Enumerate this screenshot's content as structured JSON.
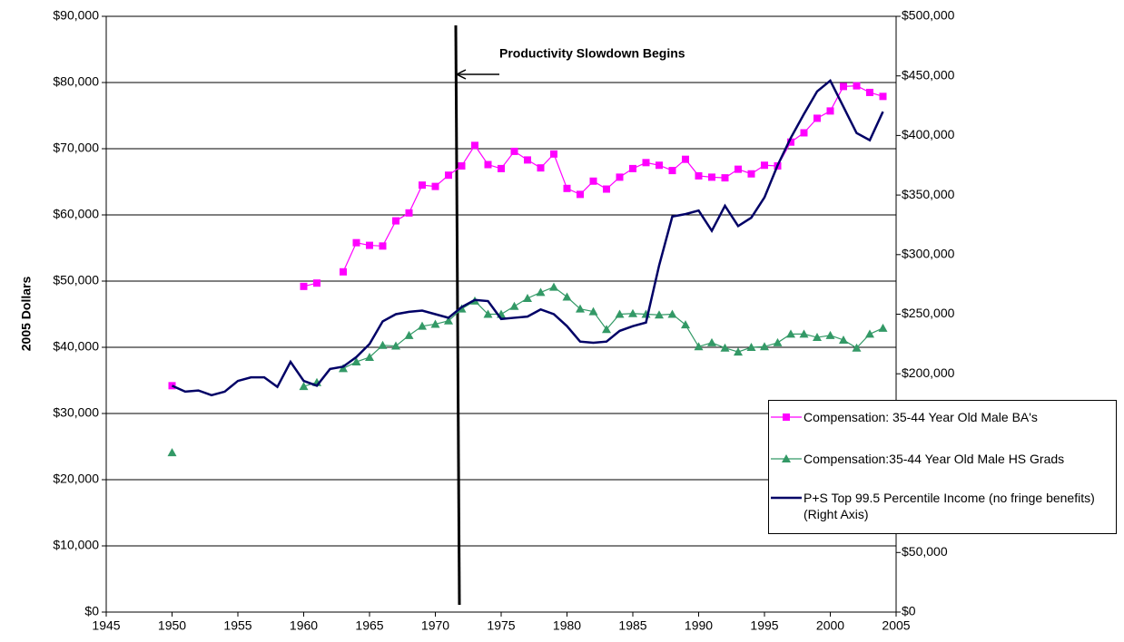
{
  "chart_data": {
    "type": "line",
    "y_label": "2005 Dollars",
    "annotation": "Productivity Slowdown Begins",
    "x": [
      1950,
      1951,
      1952,
      1953,
      1954,
      1955,
      1956,
      1957,
      1958,
      1959,
      1960,
      1961,
      1962,
      1963,
      1964,
      1965,
      1966,
      1967,
      1968,
      1969,
      1970,
      1971,
      1972,
      1973,
      1974,
      1975,
      1976,
      1977,
      1978,
      1979,
      1980,
      1981,
      1982,
      1983,
      1984,
      1985,
      1986,
      1987,
      1988,
      1989,
      1990,
      1991,
      1992,
      1993,
      1994,
      1995,
      1996,
      1997,
      1998,
      1999,
      2000,
      2001,
      2002,
      2003,
      2004
    ],
    "xlim": [
      1945,
      2005
    ],
    "xticks": [
      1945,
      1950,
      1955,
      1960,
      1965,
      1970,
      1975,
      1980,
      1985,
      1990,
      1995,
      2000,
      2005
    ],
    "ylim": [
      0,
      90000
    ],
    "yticks": [
      {
        "value": 0,
        "label": "$0"
      },
      {
        "value": 10000,
        "label": "$10,000"
      },
      {
        "value": 20000,
        "label": "$20,000"
      },
      {
        "value": 30000,
        "label": "$30,000"
      },
      {
        "value": 40000,
        "label": "$40,000"
      },
      {
        "value": 50000,
        "label": "$50,000"
      },
      {
        "value": 60000,
        "label": "$60,000"
      },
      {
        "value": 70000,
        "label": "$70,000"
      },
      {
        "value": 80000,
        "label": "$80,000"
      },
      {
        "value": 90000,
        "label": "$90,000"
      }
    ],
    "y2lim": [
      0,
      500000
    ],
    "y2ticks": [
      {
        "value": 0,
        "label": "$0"
      },
      {
        "value": 50000,
        "label": "$50,000"
      },
      {
        "value": 100000,
        "label": "$100,000"
      },
      {
        "value": 150000,
        "label": "$150,000"
      },
      {
        "value": 200000,
        "label": "$200,000"
      },
      {
        "value": 250000,
        "label": "$250,000"
      },
      {
        "value": 300000,
        "label": "$300,000"
      },
      {
        "value": 350000,
        "label": "$350,000"
      },
      {
        "value": 400000,
        "label": "$400,000"
      },
      {
        "value": 450000,
        "label": "$450,000"
      },
      {
        "value": 500000,
        "label": "$500,000"
      }
    ],
    "grid": true,
    "series": [
      {
        "name": "Compensation: 35-44 Year Old Male BA's",
        "color": "#ff00ff",
        "marker": "square",
        "values": [
          34200,
          null,
          null,
          null,
          null,
          null,
          null,
          null,
          null,
          null,
          49200,
          49700,
          null,
          51400,
          55800,
          55400,
          55300,
          59100,
          60300,
          64500,
          64300,
          66000,
          67400,
          70500,
          67600,
          67000,
          69600,
          68300,
          67100,
          69200,
          64000,
          63100,
          65100,
          63900,
          65700,
          67000,
          67900,
          67500,
          66700,
          68400,
          65900,
          65700,
          65600,
          66900,
          66200,
          67500,
          67400,
          71000,
          72400,
          74600,
          75700,
          79400,
          79500,
          78500,
          77900
        ]
      },
      {
        "name": "Compensation:35-44 Year Old Male HS Grads",
        "color": "#339966",
        "marker": "triangle",
        "values": [
          24100,
          null,
          null,
          null,
          null,
          null,
          null,
          null,
          null,
          null,
          34100,
          34700,
          null,
          36800,
          37800,
          38500,
          40300,
          40200,
          41800,
          43200,
          43500,
          44000,
          45800,
          47000,
          45000,
          45000,
          46200,
          47400,
          48300,
          49100,
          47600,
          45800,
          45400,
          42700,
          45000,
          45100,
          45000,
          44900,
          45000,
          43400,
          40100,
          40700,
          39900,
          39300,
          40000,
          40100,
          40700,
          42000,
          42000,
          41500,
          41800,
          41100,
          39900,
          42000,
          42900
        ]
      },
      {
        "name": "P+S Top 99.5 Percentile Income (no fringe benefits) (Right Axis)",
        "color": "#000066",
        "marker": "none",
        "axis": "y2",
        "values": [
          190000,
          185000,
          186000,
          182000,
          185000,
          194000,
          197000,
          197000,
          189000,
          210000,
          194000,
          190000,
          204000,
          206000,
          214000,
          225000,
          244000,
          250000,
          252000,
          253000,
          250000,
          247000,
          256000,
          262000,
          261000,
          246000,
          247000,
          248000,
          254000,
          250000,
          240000,
          227000,
          226000,
          227000,
          236000,
          240000,
          243000,
          291000,
          332000,
          334000,
          337000,
          320000,
          341000,
          324000,
          331000,
          348000,
          375000,
          398000,
          418000,
          437000,
          446000,
          424000,
          402000,
          396000,
          420000
        ]
      }
    ]
  }
}
